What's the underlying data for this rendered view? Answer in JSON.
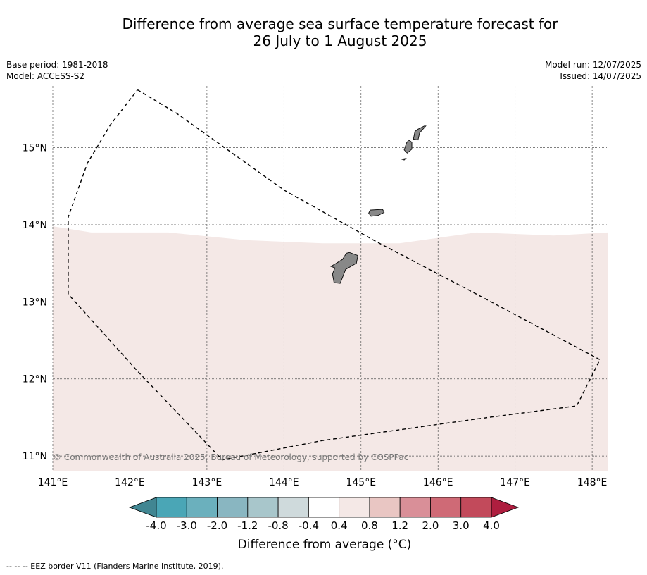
{
  "title_line1": "Difference from average sea surface temperature forecast for",
  "title_line2": "26 July to 1 August 2025",
  "meta_left": [
    "Base period: 1981-2018",
    "Model: ACCESS-S2"
  ],
  "meta_right": [
    "Model run: 12/07/2025",
    "Issued: 14/07/2025"
  ],
  "copyright": "© Commonwealth of Australia 2025, Bureau of Meteorology, supported by COSPPac",
  "footnote": "-- -- -- EEZ border V11 (Flanders Marine Institute, 2019).",
  "axes": {
    "lon_min": 141.0,
    "lon_max": 148.2,
    "lat_min": 10.8,
    "lat_max": 15.8,
    "lon_ticks": [
      {
        "value": 141,
        "label": "141°E"
      },
      {
        "value": 142,
        "label": "142°E"
      },
      {
        "value": 143,
        "label": "143°E"
      },
      {
        "value": 144,
        "label": "144°E"
      },
      {
        "value": 145,
        "label": "145°E"
      },
      {
        "value": 146,
        "label": "146°E"
      },
      {
        "value": 147,
        "label": "147°E"
      },
      {
        "value": 148,
        "label": "148°E"
      }
    ],
    "lat_ticks": [
      {
        "value": 15,
        "label": "15°N"
      },
      {
        "value": 14,
        "label": "14°N"
      },
      {
        "value": 13,
        "label": "13°N"
      },
      {
        "value": 12,
        "label": "12°N"
      },
      {
        "value": 11,
        "label": "11°N"
      }
    ]
  },
  "anomaly_region": {
    "category": "0.4 to 0.8",
    "color": "#f4e8e6",
    "northern_boundary": [
      [
        141.0,
        13.98
      ],
      [
        141.5,
        13.9
      ],
      [
        142.5,
        13.9
      ],
      [
        143.5,
        13.8
      ],
      [
        144.5,
        13.76
      ],
      [
        145.5,
        13.76
      ],
      [
        146.5,
        13.9
      ],
      [
        147.5,
        13.86
      ],
      [
        148.2,
        13.9
      ]
    ]
  },
  "eez_border": [
    [
      142.1,
      15.75
    ],
    [
      142.6,
      15.45
    ],
    [
      143.3,
      14.95
    ],
    [
      144.0,
      14.45
    ],
    [
      145.2,
      13.78
    ],
    [
      146.5,
      13.1
    ],
    [
      148.1,
      12.25
    ],
    [
      147.8,
      11.65
    ],
    [
      146.5,
      11.48
    ],
    [
      144.5,
      11.2
    ],
    [
      143.2,
      10.95
    ],
    [
      142.1,
      12.1
    ],
    [
      141.2,
      13.1
    ],
    [
      141.2,
      14.1
    ],
    [
      141.45,
      14.8
    ],
    [
      141.75,
      15.3
    ],
    [
      142.1,
      15.75
    ]
  ],
  "islands": [
    {
      "name": "Guam",
      "outline": [
        [
          144.85,
          13.64
        ],
        [
          144.96,
          13.6
        ],
        [
          144.94,
          13.5
        ],
        [
          144.8,
          13.42
        ],
        [
          144.73,
          13.24
        ],
        [
          144.65,
          13.25
        ],
        [
          144.63,
          13.36
        ],
        [
          144.66,
          13.44
        ],
        [
          144.61,
          13.46
        ],
        [
          144.68,
          13.5
        ],
        [
          144.76,
          13.55
        ],
        [
          144.81,
          13.63
        ]
      ]
    },
    {
      "name": "Rota",
      "outline": [
        [
          145.12,
          14.19
        ],
        [
          145.28,
          14.2
        ],
        [
          145.3,
          14.16
        ],
        [
          145.22,
          14.12
        ],
        [
          145.13,
          14.11
        ],
        [
          145.1,
          14.15
        ]
      ]
    },
    {
      "name": "Tinian",
      "outline": [
        [
          145.62,
          15.1
        ],
        [
          145.66,
          15.07
        ],
        [
          145.66,
          14.98
        ],
        [
          145.6,
          14.93
        ],
        [
          145.56,
          14.97
        ],
        [
          145.59,
          15.06
        ]
      ]
    },
    {
      "name": "Saipan",
      "outline": [
        [
          145.82,
          15.28
        ],
        [
          145.74,
          15.24
        ],
        [
          145.7,
          15.21
        ],
        [
          145.68,
          15.11
        ],
        [
          145.74,
          15.1
        ],
        [
          145.76,
          15.19
        ],
        [
          145.84,
          15.28
        ]
      ]
    },
    {
      "name": "Aguijan",
      "outline": [
        [
          145.53,
          14.85
        ],
        [
          145.58,
          14.86
        ],
        [
          145.56,
          14.84
        ]
      ]
    }
  ],
  "colorbar": {
    "title": "Difference from average (°C)",
    "min_color": "#418692",
    "max_color": "#ae1e3f",
    "bins": [
      {
        "color": "#4aa6b6"
      },
      {
        "color": "#6bb0bd"
      },
      {
        "color": "#89b6c1"
      },
      {
        "color": "#a8c6cb"
      },
      {
        "color": "#cfdadc"
      },
      {
        "color": "#ffffff"
      },
      {
        "color": "#f4e8e6"
      },
      {
        "color": "#e9c6c3"
      },
      {
        "color": "#d98f98"
      },
      {
        "color": "#cf6a76"
      },
      {
        "color": "#c24a5b"
      }
    ],
    "tick_labels": [
      "-4.0",
      "-3.0",
      "-2.0",
      "-1.2",
      "-0.8",
      "-0.4",
      "0.4",
      "0.8",
      "1.2",
      "2.0",
      "3.0",
      "4.0"
    ]
  }
}
